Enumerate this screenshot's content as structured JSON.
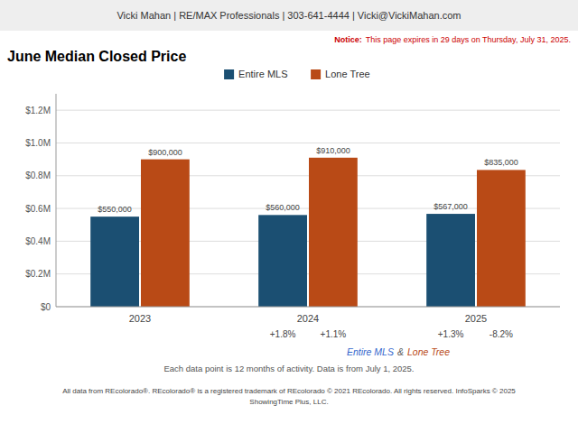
{
  "chart_data": {
    "type": "bar",
    "title": "June Median Closed Price",
    "header": "Vicki Mahan | RE/MAX Professionals | 303-641-4444 | Vicki@VickiMahan.com",
    "notice": {
      "label": "Notice:",
      "text": "This page expires in 29 days on Thursday, July 31, 2025."
    },
    "categories": [
      "2023",
      "2024",
      "2025"
    ],
    "series": [
      {
        "name": "Entire MLS",
        "color": "#1B4F72",
        "values": [
          550000,
          560000,
          567000
        ],
        "value_labels": [
          "$550,000",
          "$560,000",
          "$567,000"
        ],
        "change_labels": [
          null,
          "+1.8%",
          "+1.3%"
        ]
      },
      {
        "name": "Lone Tree",
        "color": "#B94A16",
        "values": [
          900000,
          910000,
          835000
        ],
        "value_labels": [
          "$900,000",
          "$910,000",
          "$835,000"
        ],
        "change_labels": [
          null,
          "+1.1%",
          "-8.2%"
        ]
      }
    ],
    "ylim": [
      0,
      1300000
    ],
    "yticks": [
      {
        "value": 0,
        "label": "$0"
      },
      {
        "value": 200000,
        "label": "$0.2M"
      },
      {
        "value": 400000,
        "label": "$0.4M"
      },
      {
        "value": 600000,
        "label": "$0.6M"
      },
      {
        "value": 800000,
        "label": "$0.8M"
      },
      {
        "value": 1000000,
        "label": "$1.0M"
      },
      {
        "value": 1200000,
        "label": "$1.2M"
      }
    ],
    "grid": true,
    "legend": "top",
    "data_labels": true,
    "legend_note": [
      {
        "text": "Entire MLS",
        "color": "#3366cc"
      },
      {
        "text": "&"
      },
      {
        "text": "Lone Tree",
        "color": "#B94A16"
      }
    ],
    "notes": [
      "Each data point is 12 months of activity. Data is from July 1, 2025.",
      "All data from REcolorado®. REcolorado® is a registered trademark of REcolorado © 2021 REcolorado. All rights reserved. InfoSparks © 2025",
      "ShowingTime Plus, LLC."
    ]
  }
}
